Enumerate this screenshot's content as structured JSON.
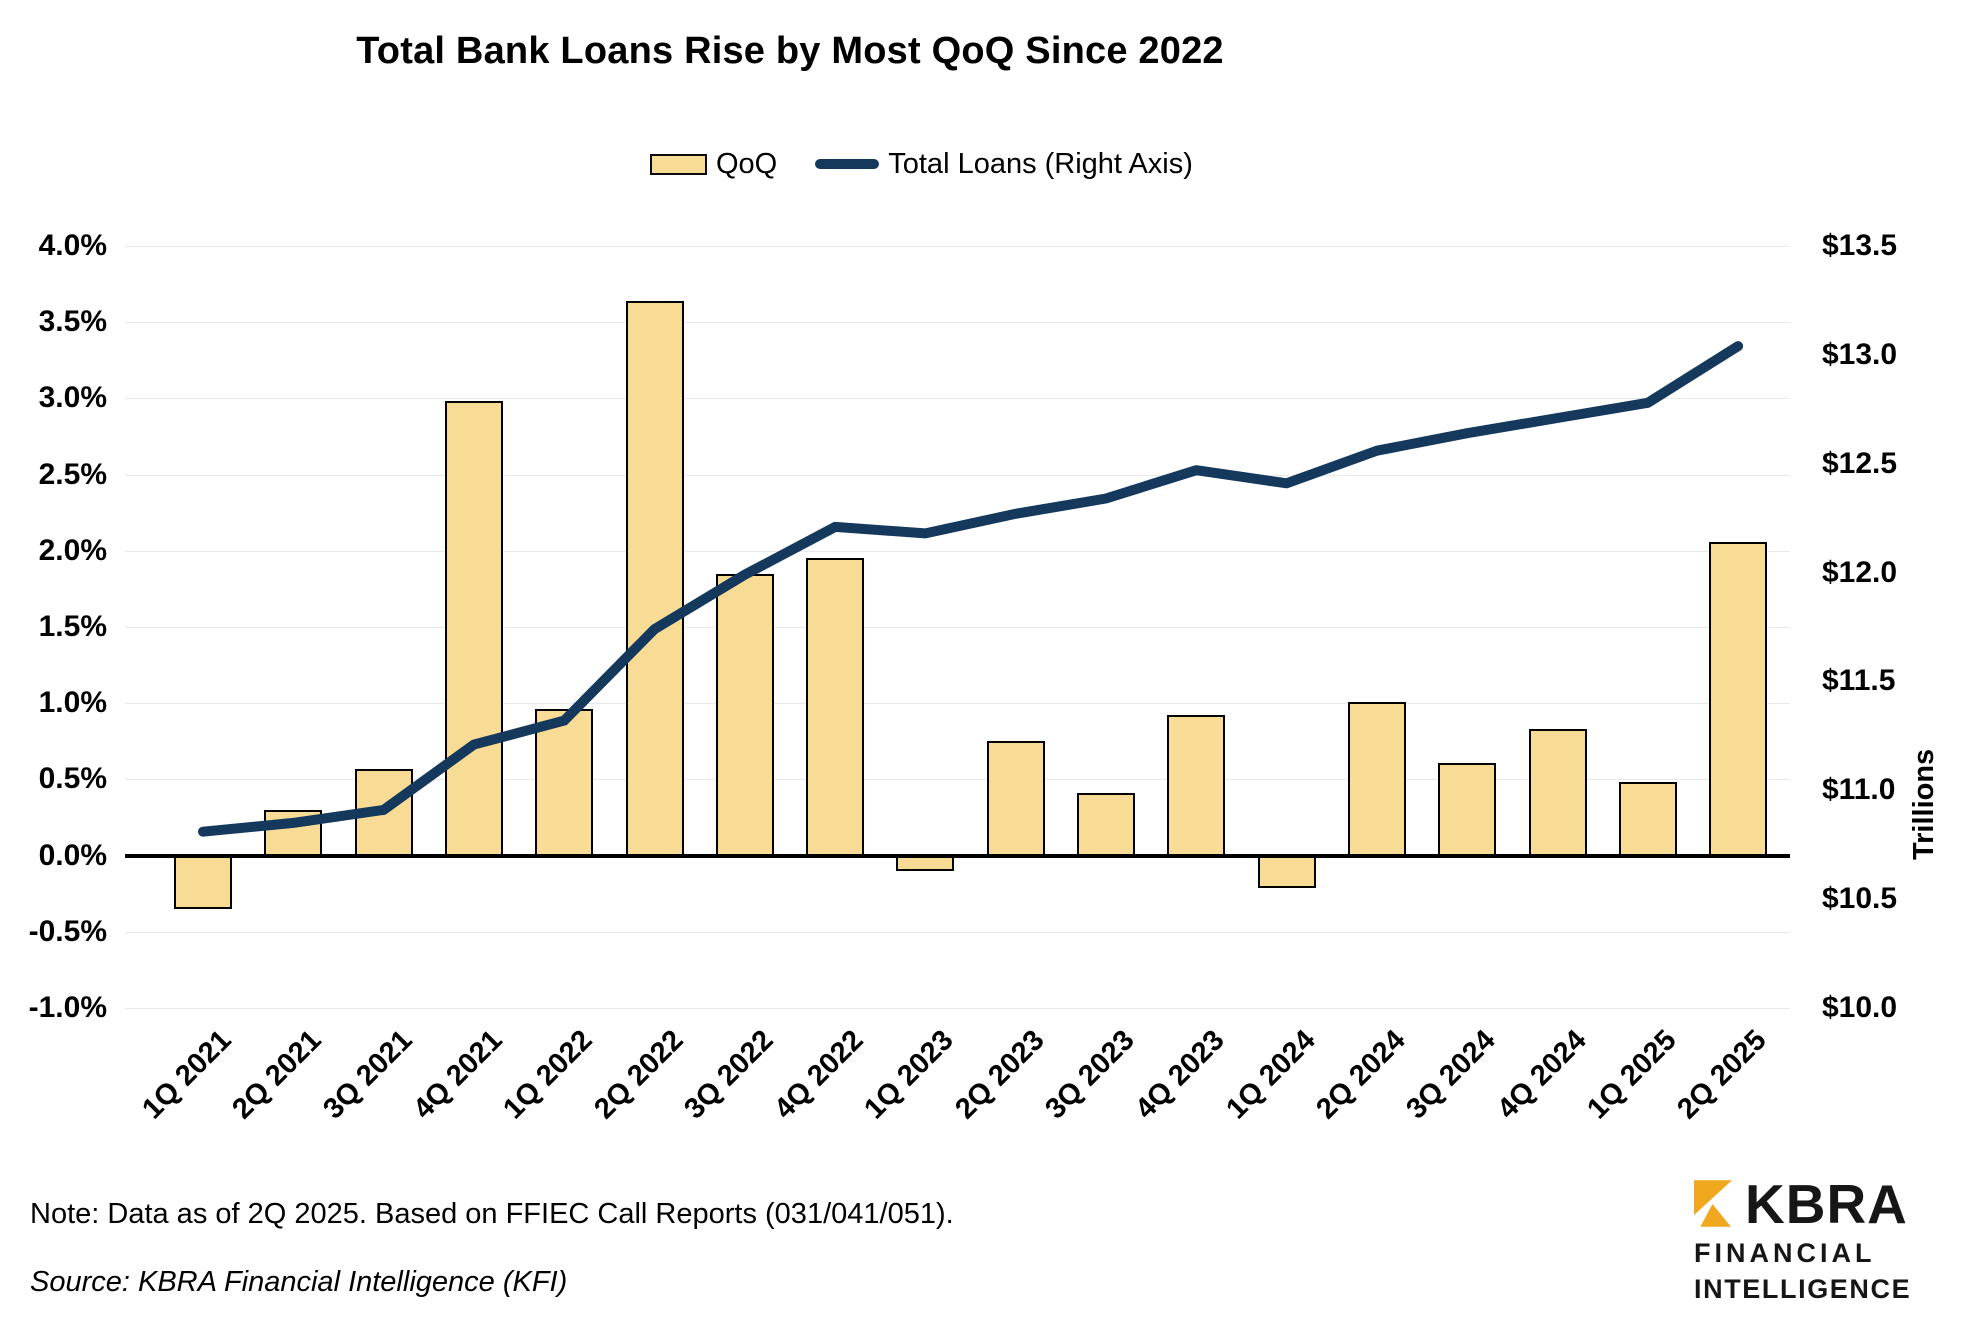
{
  "title": "Total Bank Loans Rise by Most QoQ Since 2022",
  "legend": {
    "qoq_label": "QoQ",
    "line_label": "Total Loans (Right Axis)"
  },
  "note": "Note: Data as of 2Q 2025. Based on FFIEC Call Reports (031/041/051).",
  "source": "Source: KBRA Financial Intelligence (KFI)",
  "logo": {
    "name": "KBRA",
    "sub1": "FINANCIAL",
    "sub2": "INTELLIGENCE"
  },
  "colors": {
    "bar_fill": "#F8DC96",
    "bar_border": "#000000",
    "line": "#14395D",
    "gridline": "#E9E9E9",
    "zero_line": "#000000",
    "logo_gold": "#F0A81E",
    "text": "#000000"
  },
  "chart_data": {
    "type": "bar",
    "subtype": "bar+line combo, dual axis",
    "title": "Total Bank Loans Rise by Most QoQ Since 2022",
    "categories": [
      "1Q 2021",
      "2Q 2021",
      "3Q 2021",
      "4Q 2021",
      "1Q 2022",
      "2Q 2022",
      "3Q 2022",
      "4Q 2022",
      "1Q 2023",
      "2Q 2023",
      "3Q 2023",
      "4Q 2023",
      "1Q 2024",
      "2Q 2024",
      "3Q 2024",
      "4Q 2024",
      "1Q 2025",
      "2Q 2025"
    ],
    "series": [
      {
        "name": "QoQ",
        "type": "bar",
        "axis": "left",
        "unit": "percent",
        "values": [
          -0.35,
          0.3,
          0.57,
          2.98,
          0.96,
          3.64,
          1.85,
          1.95,
          -0.1,
          0.75,
          0.41,
          0.92,
          -0.21,
          1.01,
          0.61,
          0.83,
          0.48,
          2.06
        ]
      },
      {
        "name": "Total Loans (Right Axis)",
        "type": "line",
        "axis": "right",
        "unit": "USD trillions",
        "values": [
          10.81,
          10.85,
          10.91,
          11.21,
          11.32,
          11.74,
          11.99,
          12.21,
          12.18,
          12.27,
          12.34,
          12.47,
          12.41,
          12.56,
          12.64,
          12.71,
          12.78,
          13.04
        ]
      }
    ],
    "left_axis": {
      "min": -1.0,
      "max": 4.0,
      "ticks": [
        "4.0%",
        "3.5%",
        "3.0%",
        "2.5%",
        "2.0%",
        "1.5%",
        "1.0%",
        "0.5%",
        "0.0%",
        "-0.5%",
        "-1.0%"
      ]
    },
    "right_axis": {
      "min": 10.0,
      "max": 13.5,
      "ticks": [
        "$13.5",
        "$13.0",
        "$12.5",
        "$12.0",
        "$11.5",
        "$11.0",
        "$10.5",
        "$10.0"
      ],
      "label": "Trillions"
    },
    "grid": true,
    "legend_position": "top-center"
  }
}
